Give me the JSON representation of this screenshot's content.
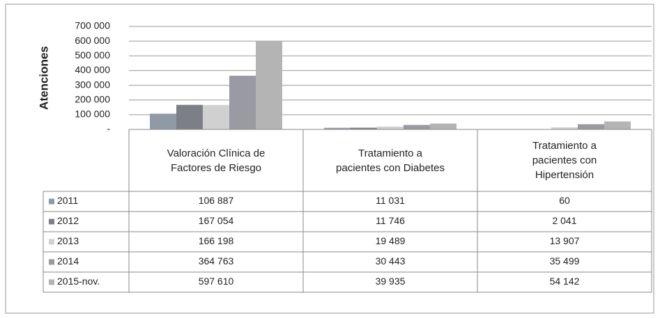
{
  "chart_data": {
    "type": "bar",
    "y_label": "Atenciones",
    "categories": [
      "Valoración Clínica de Factores de Riesgo",
      "Tratamiento a pacientes con Diabetes",
      "Tratamiento a pacientes con Hipertensión"
    ],
    "series": [
      {
        "name": "2011",
        "color": "#8f9aa6",
        "values": [
          106887,
          11031,
          60
        ],
        "value_labels": [
          "106 887",
          "11 031",
          "60"
        ]
      },
      {
        "name": "2012",
        "color": "#7d7f86",
        "values": [
          167054,
          11746,
          2041
        ],
        "value_labels": [
          "167 054",
          "11 746",
          "2 041"
        ]
      },
      {
        "name": "2013",
        "color": "#d0d0d0",
        "values": [
          166198,
          19489,
          13907
        ],
        "value_labels": [
          "166 198",
          "19 489",
          "13 907"
        ]
      },
      {
        "name": "2014",
        "color": "#9a9ba2",
        "values": [
          364763,
          30443,
          35499
        ],
        "value_labels": [
          "364 763",
          "30 443",
          "35 499"
        ]
      },
      {
        "name": "2015-nov.",
        "color": "#b4b4b4",
        "values": [
          597610,
          39935,
          54142
        ],
        "value_labels": [
          "597 610",
          "39 935",
          "54 142"
        ]
      }
    ],
    "ylim": [
      0,
      700000
    ],
    "yticks": [
      {
        "value": 0,
        "label": "-"
      },
      {
        "value": 100000,
        "label": "100 000"
      },
      {
        "value": 200000,
        "label": "200 000"
      },
      {
        "value": 300000,
        "label": "300 000"
      },
      {
        "value": 400000,
        "label": "400 000"
      },
      {
        "value": 500000,
        "label": "500 000"
      },
      {
        "value": 600000,
        "label": "600 000"
      },
      {
        "value": 700000,
        "label": "700 000"
      }
    ],
    "grid": true
  }
}
